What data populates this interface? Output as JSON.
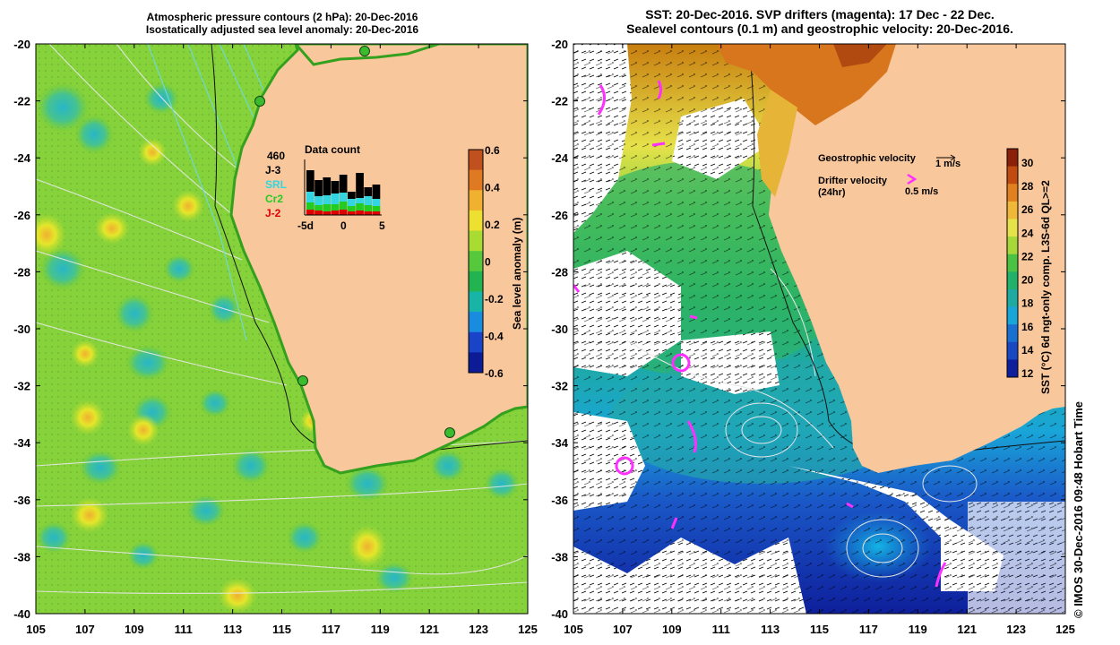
{
  "left_panel": {
    "title_line1": "Atmospheric pressure contours (2 hPa): 20-Dec-2016",
    "title_line2": "Isostatically adjusted sea level anomaly: 20-Dec-2016",
    "colorbar_label": "Sea level anomaly (m)",
    "colorbar_ticks": [
      "0.6",
      "0.4",
      "0.2",
      "0",
      "-0.2",
      "-0.4",
      "-0.6"
    ],
    "data_count": {
      "title": "Data count",
      "total": "460",
      "series": [
        {
          "label": "J-3",
          "color": "#000000"
        },
        {
          "label": "SRL",
          "color": "#33d6e0"
        },
        {
          "label": "Cr2",
          "color": "#22cc22"
        },
        {
          "label": "J-2",
          "color": "#dd0000"
        }
      ],
      "x_ticks": [
        "-5d",
        "0",
        "5"
      ]
    }
  },
  "right_panel": {
    "title_line1": "SST: 20-Dec-2016. SVP drifters (magenta): 17 Dec - 22 Dec.",
    "title_line2": "Sealevel contours (0.1 m) and geostrophic velocity: 20-Dec-2016.",
    "legend": {
      "geostrophic_label": "Geostrophic velocity",
      "geostrophic_scale": "1 m/s",
      "drifter_label": "Drifter velocity",
      "drifter_sub": "(24hr)",
      "drifter_scale": "0.5 m/s"
    },
    "colorbar_label": "SST (°C) 6d ngt-only comp. L3S-6d QL>=2",
    "colorbar_ticks": [
      "30",
      "28",
      "26",
      "24",
      "22",
      "20",
      "18",
      "16",
      "14",
      "12"
    ]
  },
  "axes": {
    "y_ticks": [
      "-20",
      "-22",
      "-24",
      "-26",
      "-28",
      "-30",
      "-32",
      "-34",
      "-36",
      "-38",
      "-40"
    ],
    "x_ticks": [
      "105",
      "107",
      "109",
      "111",
      "113",
      "115",
      "117",
      "119",
      "121",
      "123",
      "125"
    ]
  },
  "watermark": "© IMOS 30-Dec-2016 09:48 Hobart Time"
}
